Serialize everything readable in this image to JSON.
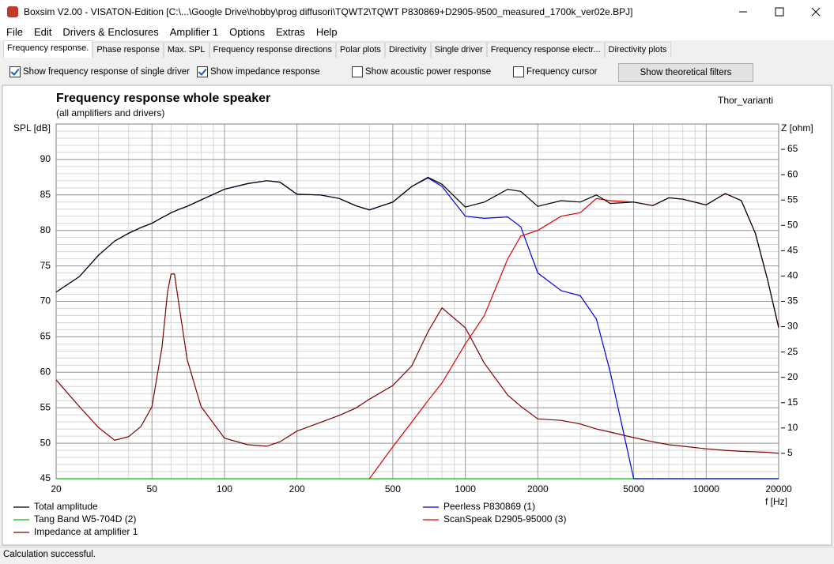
{
  "window": {
    "title": "Boxsim V2.00 - VISATON-Edition [C:\\...\\Google Drive\\hobby\\prog diffusori\\TQWT2\\TQWT P830869+D2905-9500_measured_1700k_ver02e.BPJ]",
    "menu": [
      "File",
      "Edit",
      "Drivers & Enclosures",
      "Amplifier 1",
      "Options",
      "Extras",
      "Help"
    ],
    "tabs": [
      "Frequency response.",
      "Phase response",
      "Max. SPL",
      "Frequency response directions",
      "Polar plots",
      "Directivity",
      "Single driver",
      "Frequency response electr...",
      "Directivity plots"
    ],
    "selected_tab": 0,
    "options": [
      {
        "label": "Show frequency response of single driver",
        "checked": true
      },
      {
        "label": "Show impedance response",
        "checked": true
      },
      {
        "label": "Show acoustic power response",
        "checked": false
      },
      {
        "label": "Frequency cursor",
        "checked": false
      }
    ],
    "button": "Show theoretical filters",
    "status": "Calculation successful."
  },
  "chart_data": {
    "type": "line",
    "title": "Frequency response whole speaker",
    "subtitle": "(all amplifiers and drivers)",
    "annotation": "Thor_varianti",
    "xlabel": "f [Hz]",
    "ylabel": "SPL [dB]",
    "y2label": "Z [ohm]",
    "xscale": "log",
    "xlim": [
      20,
      20000
    ],
    "xticks": [
      20,
      50,
      100,
      200,
      500,
      1000,
      2000,
      5000,
      10000,
      20000
    ],
    "ylim": [
      45,
      95
    ],
    "yticks": [
      45,
      50,
      55,
      60,
      65,
      70,
      75,
      80,
      85,
      90
    ],
    "y2lim": [
      0,
      70
    ],
    "y2ticks": [
      5,
      10,
      15,
      20,
      25,
      30,
      35,
      40,
      45,
      50,
      55,
      60,
      65
    ],
    "grid": true,
    "minor_grid": true,
    "x": [
      20,
      25,
      30,
      35,
      40,
      45,
      50,
      55,
      58,
      60,
      62,
      65,
      70,
      80,
      100,
      125,
      150,
      170,
      200,
      250,
      300,
      350,
      400,
      500,
      600,
      700,
      800,
      1000,
      1200,
      1500,
      1700,
      2000,
      2500,
      3000,
      3500,
      4000,
      5000,
      6000,
      7000,
      8000,
      10000,
      12000,
      14000,
      16000,
      18000,
      20000
    ],
    "series": [
      {
        "name": "Total amplitude",
        "color": "#000000",
        "values": [
          71.3,
          73.5,
          76.5,
          78.5,
          79.6,
          80.4,
          81,
          81.8,
          82.2,
          82.5,
          82.7,
          83,
          83.4,
          84.3,
          85.8,
          86.6,
          87,
          86.8,
          85.1,
          85,
          84.5,
          83.5,
          82.9,
          84,
          86.2,
          87.5,
          86.5,
          83.3,
          84,
          85.8,
          85.5,
          83.4,
          84.2,
          84,
          85,
          83.8,
          84,
          83.5,
          84.6,
          84.4,
          83.6,
          85.2,
          84.2,
          79.6,
          73,
          66.3
        ]
      },
      {
        "name": "Peerless P830869 (1)",
        "color": "#0000e0",
        "values": [
          71.3,
          73.5,
          76.5,
          78.5,
          79.6,
          80.4,
          81,
          81.8,
          82.2,
          82.5,
          82.7,
          83,
          83.4,
          84.3,
          85.8,
          86.6,
          87,
          86.8,
          85.1,
          85,
          84.5,
          83.5,
          82.9,
          84,
          86.2,
          87.4,
          86.2,
          82,
          81.7,
          81.9,
          80.5,
          74,
          71.5,
          70.8,
          67.5,
          60,
          45,
          45,
          45,
          45,
          45,
          45,
          45,
          45,
          45,
          45
        ]
      },
      {
        "name": "Tang Band W5-704D (2)",
        "color": "#00c000",
        "values": [
          45,
          45,
          45,
          45,
          45,
          45,
          45,
          45,
          45,
          45,
          45,
          45,
          45,
          45,
          45,
          45,
          45,
          45,
          45,
          45,
          45,
          45,
          45,
          45,
          45,
          45,
          45,
          45,
          45,
          45,
          45,
          45,
          45,
          45,
          45,
          45,
          45,
          45,
          45,
          45,
          45,
          45,
          45,
          45,
          45,
          45
        ]
      },
      {
        "name": "ScanSpeak D2905-95000 (3)",
        "color": "#e00000",
        "values": [
          null,
          null,
          null,
          null,
          null,
          null,
          null,
          null,
          null,
          null,
          null,
          null,
          null,
          null,
          null,
          null,
          null,
          null,
          null,
          null,
          null,
          null,
          45,
          49.5,
          53,
          56,
          58.5,
          64,
          68,
          76,
          79.2,
          80,
          82,
          82.5,
          84.5,
          84.2,
          84,
          83.5,
          84.6,
          84.4,
          83.6,
          85.2,
          84.2,
          79.6,
          73,
          66.3
        ]
      },
      {
        "name": "Impedance at amplifier 1",
        "color": "#800000",
        "axis": "y2",
        "values": [
          19.5,
          14.2,
          10.1,
          7.6,
          8.3,
          10.3,
          14.2,
          25.9,
          36.8,
          40.4,
          40.4,
          33.7,
          23.5,
          14.2,
          8,
          6.7,
          6.4,
          7.3,
          9.4,
          11.1,
          12.5,
          13.9,
          15.7,
          18.4,
          22.3,
          29,
          33.7,
          29.8,
          22.8,
          16.5,
          14.3,
          11.8,
          11.5,
          10.8,
          9.8,
          9.2,
          8.1,
          7.3,
          6.7,
          6.4,
          5.9,
          5.6,
          5.4,
          5.3,
          5.2,
          5
        ]
      }
    ]
  }
}
